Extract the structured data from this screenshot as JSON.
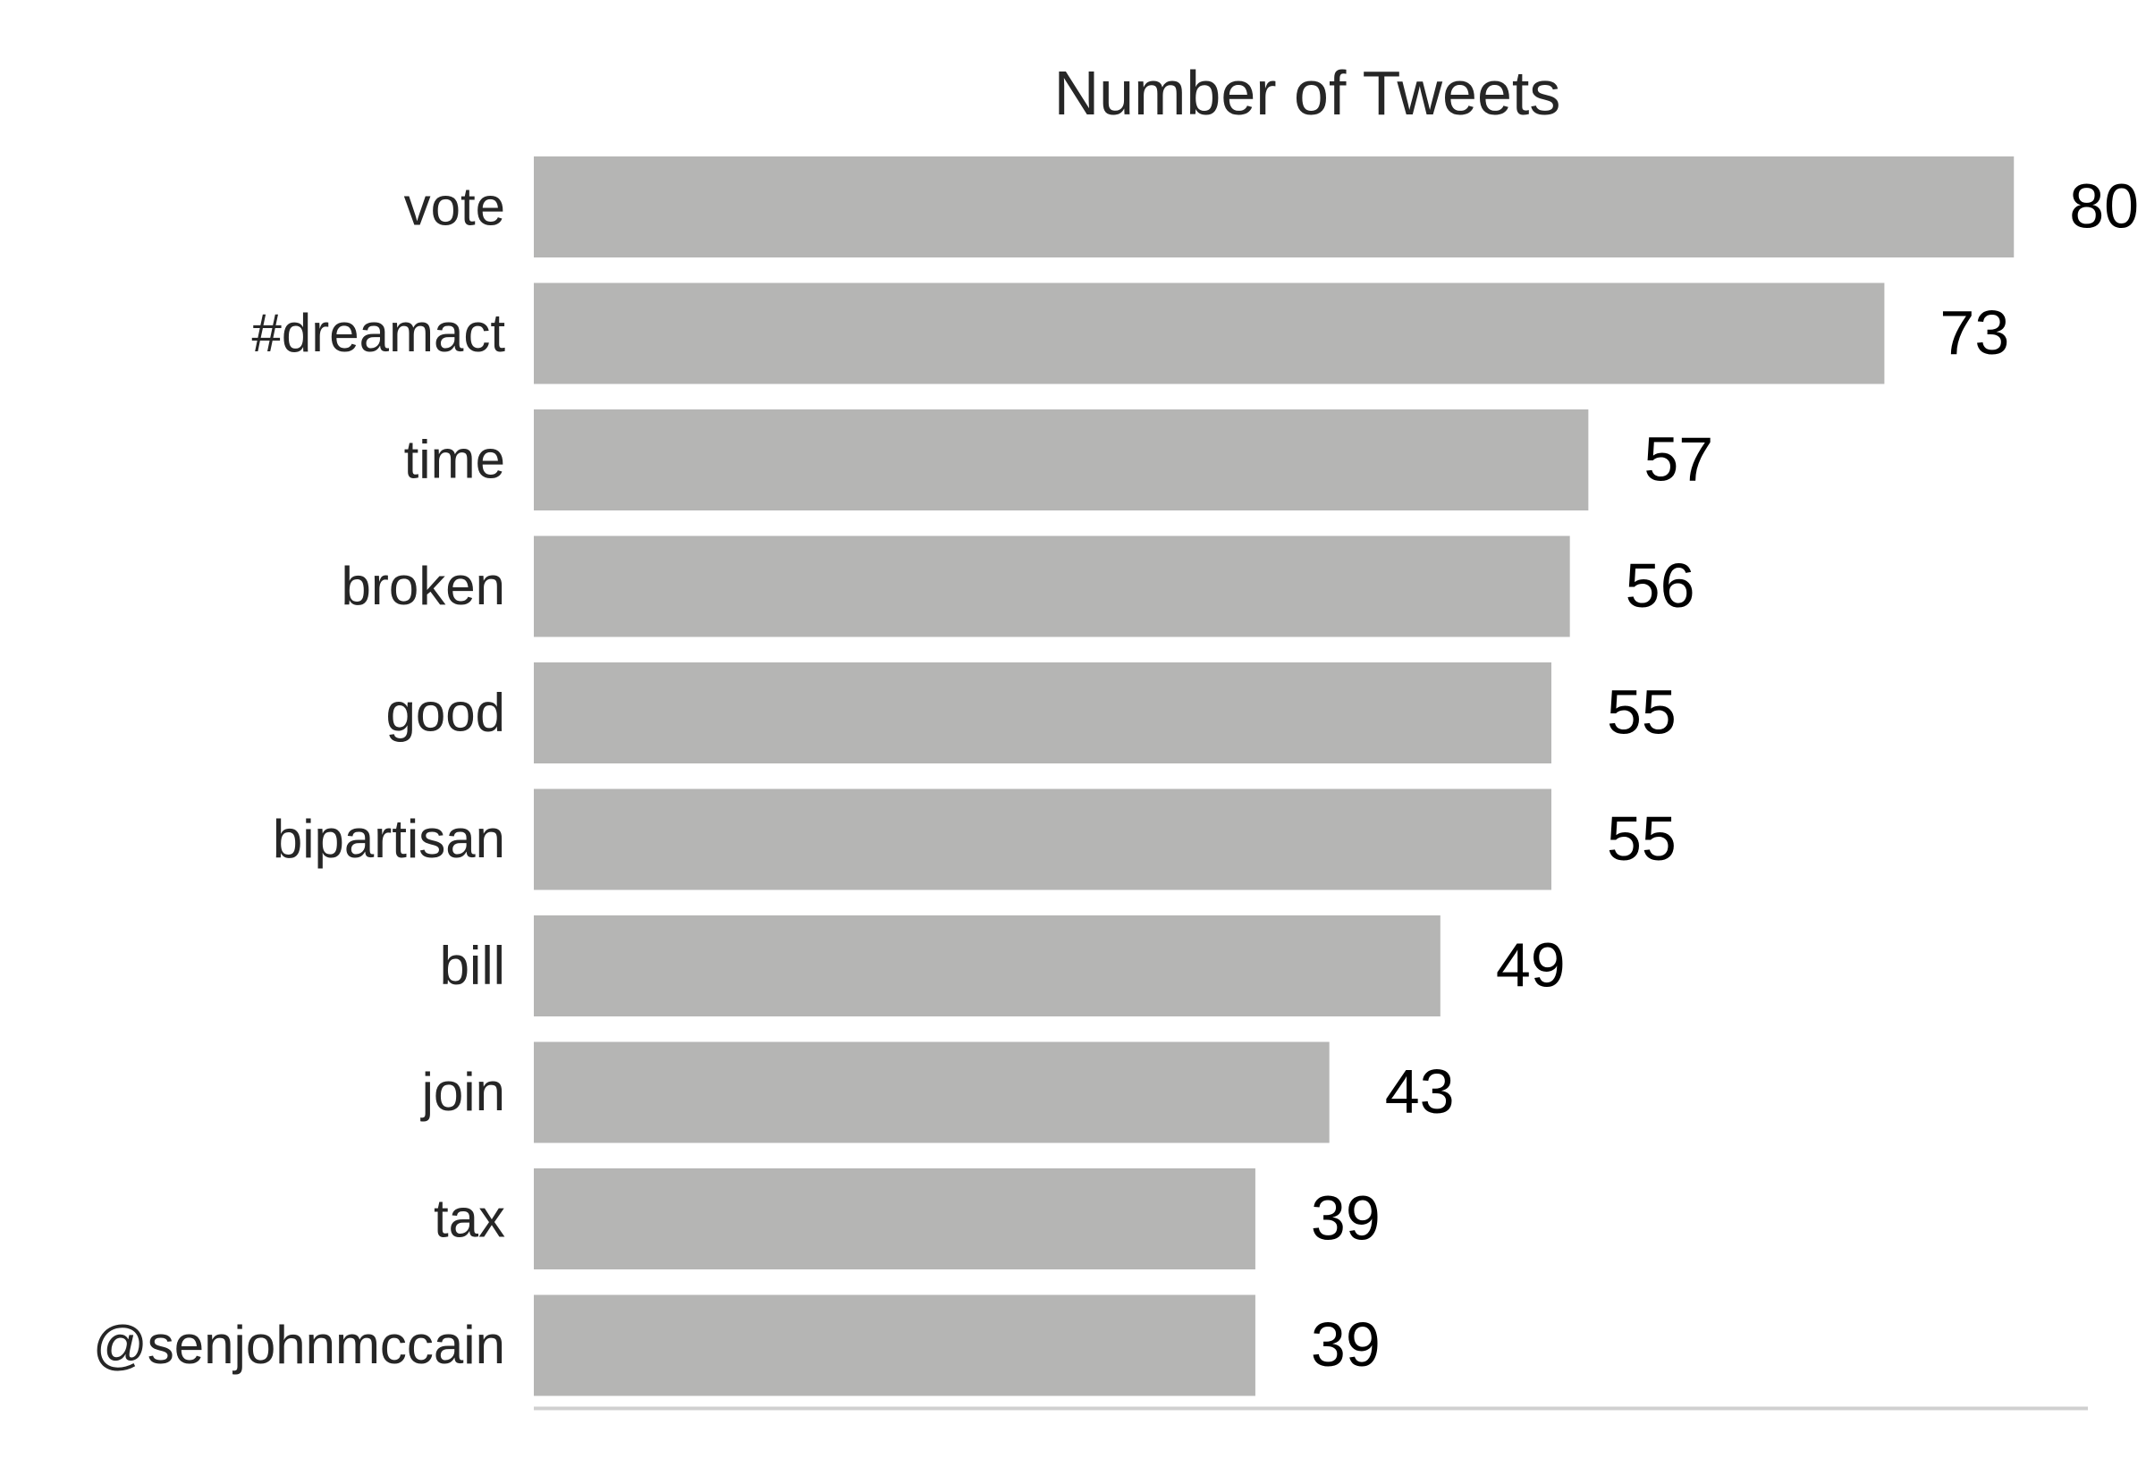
{
  "chart_data": {
    "type": "bar",
    "orientation": "horizontal",
    "title": "Number of Tweets",
    "xlabel": "",
    "ylabel": "",
    "categories": [
      "vote",
      "#dreamact",
      "time",
      "broken",
      "good",
      "bipartisan",
      "bill",
      "join",
      "tax",
      "@senjohnmccain"
    ],
    "values": [
      80,
      73,
      57,
      56,
      55,
      55,
      49,
      43,
      39,
      39
    ],
    "data_labels": [
      "80",
      "73",
      "57",
      "56",
      "55",
      "55",
      "49",
      "43",
      "39",
      "39"
    ],
    "xlim": [
      0,
      84
    ],
    "grid": false,
    "legend": "none",
    "colors": {
      "bar": "#b5b5b4",
      "axis": "#d0d0d0",
      "text": "#262626",
      "label": "#000000"
    }
  }
}
